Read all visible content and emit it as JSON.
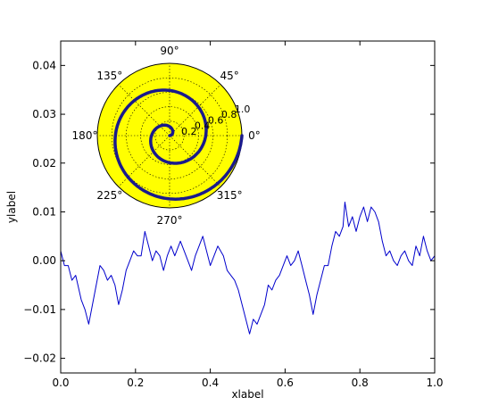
{
  "chart_data": [
    {
      "type": "line",
      "xlabel": "xlabel",
      "ylabel": "ylabel",
      "xlim": [
        0.0,
        1.0
      ],
      "ylim": [
        -0.023,
        0.045
      ],
      "xticks": [
        0.0,
        0.2,
        0.4,
        0.6,
        0.8,
        1.0
      ],
      "xtick_labels": [
        "0.0",
        "0.2",
        "0.4",
        "0.6",
        "0.8",
        "1.0"
      ],
      "yticks": [
        -0.02,
        -0.01,
        0.0,
        0.01,
        0.02,
        0.03,
        0.04
      ],
      "ytick_labels": [
        "−0.02",
        "−0.01",
        "0.00",
        "0.01",
        "0.02",
        "0.03",
        "0.04"
      ],
      "grid": false,
      "series": [
        {
          "color": "#0000cc",
          "points": [
            [
              0.0,
              0.002
            ],
            [
              0.01,
              -0.001
            ],
            [
              0.02,
              -0.001
            ],
            [
              0.03,
              -0.004
            ],
            [
              0.04,
              -0.003
            ],
            [
              0.055,
              -0.008
            ],
            [
              0.065,
              -0.01
            ],
            [
              0.075,
              -0.013
            ],
            [
              0.085,
              -0.009
            ],
            [
              0.095,
              -0.005
            ],
            [
              0.105,
              -0.001
            ],
            [
              0.115,
              -0.002
            ],
            [
              0.125,
              -0.004
            ],
            [
              0.135,
              -0.003
            ],
            [
              0.145,
              -0.005
            ],
            [
              0.155,
              -0.009
            ],
            [
              0.165,
              -0.006
            ],
            [
              0.175,
              -0.002
            ],
            [
              0.185,
              0.0
            ],
            [
              0.195,
              0.002
            ],
            [
              0.205,
              0.001
            ],
            [
              0.215,
              0.001
            ],
            [
              0.225,
              0.006
            ],
            [
              0.235,
              0.003
            ],
            [
              0.245,
              0.0
            ],
            [
              0.255,
              0.002
            ],
            [
              0.265,
              0.001
            ],
            [
              0.275,
              -0.002
            ],
            [
              0.285,
              0.001
            ],
            [
              0.295,
              0.003
            ],
            [
              0.305,
              0.001
            ],
            [
              0.32,
              0.004
            ],
            [
              0.33,
              0.002
            ],
            [
              0.34,
              0.0
            ],
            [
              0.35,
              -0.002
            ],
            [
              0.36,
              0.001
            ],
            [
              0.37,
              0.003
            ],
            [
              0.38,
              0.005
            ],
            [
              0.39,
              0.002
            ],
            [
              0.4,
              -0.001
            ],
            [
              0.41,
              0.001
            ],
            [
              0.42,
              0.003
            ],
            [
              0.435,
              0.001
            ],
            [
              0.445,
              -0.002
            ],
            [
              0.455,
              -0.003
            ],
            [
              0.465,
              -0.004
            ],
            [
              0.475,
              -0.006
            ],
            [
              0.485,
              -0.009
            ],
            [
              0.495,
              -0.012
            ],
            [
              0.505,
              -0.015
            ],
            [
              0.515,
              -0.012
            ],
            [
              0.525,
              -0.013
            ],
            [
              0.535,
              -0.011
            ],
            [
              0.545,
              -0.009
            ],
            [
              0.555,
              -0.005
            ],
            [
              0.565,
              -0.006
            ],
            [
              0.575,
              -0.004
            ],
            [
              0.585,
              -0.003
            ],
            [
              0.595,
              -0.001
            ],
            [
              0.605,
              0.001
            ],
            [
              0.615,
              -0.001
            ],
            [
              0.625,
              0.0
            ],
            [
              0.635,
              0.002
            ],
            [
              0.645,
              -0.001
            ],
            [
              0.655,
              -0.004
            ],
            [
              0.665,
              -0.007
            ],
            [
              0.675,
              -0.011
            ],
            [
              0.685,
              -0.007
            ],
            [
              0.695,
              -0.004
            ],
            [
              0.705,
              -0.001
            ],
            [
              0.715,
              -0.001
            ],
            [
              0.725,
              0.003
            ],
            [
              0.735,
              0.006
            ],
            [
              0.745,
              0.005
            ],
            [
              0.755,
              0.007
            ],
            [
              0.76,
              0.012
            ],
            [
              0.77,
              0.007
            ],
            [
              0.78,
              0.009
            ],
            [
              0.79,
              0.006
            ],
            [
              0.8,
              0.009
            ],
            [
              0.81,
              0.011
            ],
            [
              0.82,
              0.008
            ],
            [
              0.83,
              0.011
            ],
            [
              0.84,
              0.01
            ],
            [
              0.85,
              0.008
            ],
            [
              0.86,
              0.004
            ],
            [
              0.87,
              0.001
            ],
            [
              0.88,
              0.002
            ],
            [
              0.89,
              0.0
            ],
            [
              0.9,
              -0.001
            ],
            [
              0.91,
              0.001
            ],
            [
              0.92,
              0.002
            ],
            [
              0.93,
              0.0
            ],
            [
              0.94,
              -0.001
            ],
            [
              0.95,
              0.003
            ],
            [
              0.96,
              0.001
            ],
            [
              0.97,
              0.005
            ],
            [
              0.98,
              0.002
            ],
            [
              0.99,
              0.0
            ],
            [
              1.0,
              0.001
            ]
          ]
        }
      ]
    },
    {
      "type": "polar",
      "face_color": "#ffff00",
      "line_color": "#1a1a8c",
      "rlim": [
        0.0,
        1.0
      ],
      "r_ticks": [
        0.2,
        0.4,
        0.6,
        0.8,
        1.0
      ],
      "r_tick_labels": [
        "0.2",
        "0.4",
        "0.6",
        "0.8",
        "1.0"
      ],
      "theta_ticks": [
        0,
        45,
        90,
        135,
        180,
        225,
        270,
        315
      ],
      "theta_tick_labels": [
        "0°",
        "45°",
        "90°",
        "135°",
        "180°",
        "225°",
        "270°",
        "315°"
      ],
      "grid": true,
      "series": [
        {
          "formula": "r = theta / (4 * pi)",
          "theta_range_turns": [
            0,
            2
          ]
        }
      ]
    }
  ]
}
